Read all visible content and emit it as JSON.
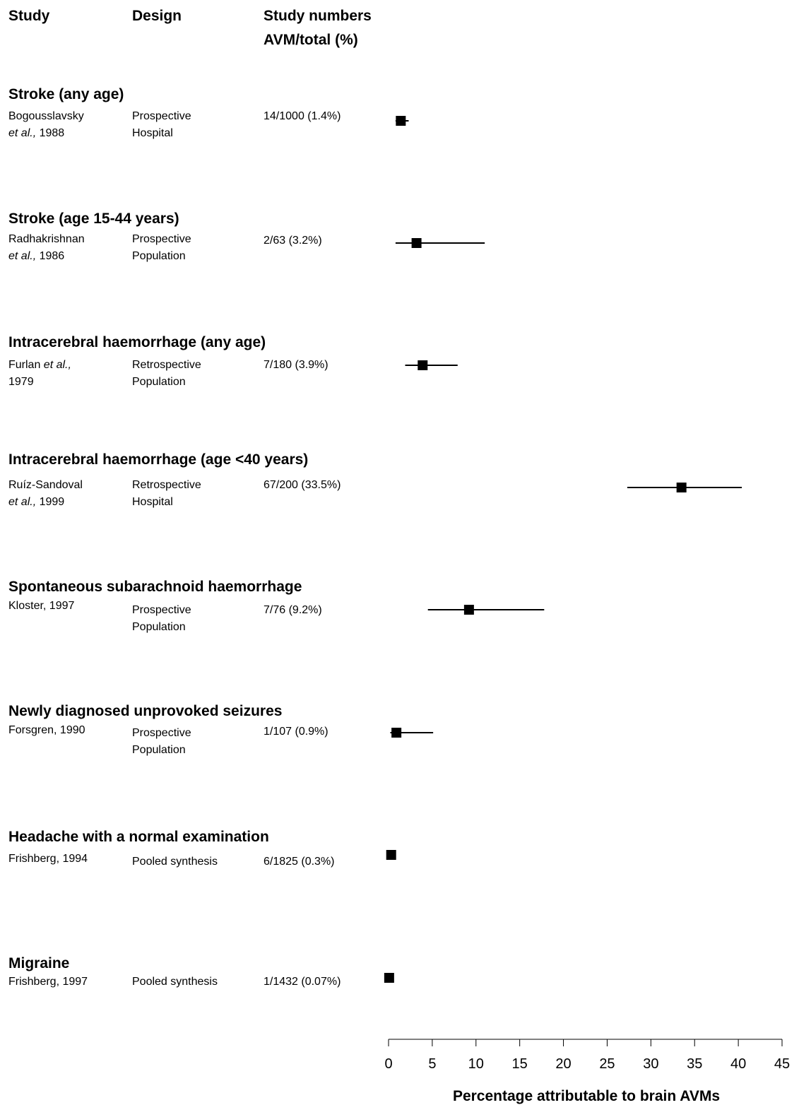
{
  "headers": {
    "study": "Study",
    "design": "Design",
    "numbers_line1": "Study numbers",
    "numbers_line2": "AVM/total (%)"
  },
  "groups": [
    {
      "title": "Stroke (any age)",
      "study_line1": "Bogousslavsky",
      "study_line2_italic": "et al.,",
      "study_line2_rest": " 1988",
      "design_line1": "Prospective",
      "design_line2": "Hospital",
      "numbers": "14/1000 (1.4%)"
    },
    {
      "title": "Stroke (age 15-44 years)",
      "study_line1": "Radhakrishnan",
      "study_line2_italic": "et al.,",
      "study_line2_rest": " 1986",
      "design_line1": "Prospective",
      "design_line2": "Population",
      "numbers": "2/63 (3.2%)"
    },
    {
      "title": "Intracerebral haemorrhage (any age)",
      "study_line1_plain": "Furlan ",
      "study_line1_italic": "et al.,",
      "study_line2": "1979",
      "design_line1": "Retrospective",
      "design_line2": "Population",
      "numbers": "7/180 (3.9%)"
    },
    {
      "title": "Intracerebral haemorrhage (age <40 years)",
      "study_line1": "Ruíz-Sandoval",
      "study_line2_italic": "et al.,",
      "study_line2_rest": " 1999",
      "design_line1": "Retrospective",
      "design_line2": "Hospital",
      "numbers": "67/200 (33.5%)"
    },
    {
      "title": "Spontaneous subarachnoid haemorrhage",
      "study_line1": "Kloster, 1997",
      "design_line1": "Prospective",
      "design_line2": "Population",
      "numbers": "7/76 (9.2%)"
    },
    {
      "title": "Newly diagnosed unprovoked seizures",
      "study_line1": "Forsgren, 1990",
      "design_line1": "Prospective",
      "design_line2": "Population",
      "numbers": "1/107 (0.9%)"
    },
    {
      "title": "Headache with a normal examination",
      "study_line1": "Frishberg, 1994",
      "design_line1": "Pooled synthesis",
      "numbers": "6/1825 (0.3%)"
    },
    {
      "title": "Migraine",
      "study_line1": "Frishberg, 1997",
      "design_line1": "Pooled synthesis",
      "numbers": "1/1432 (0.07%)"
    }
  ],
  "chart_data": {
    "type": "forest",
    "xlabel": "Percentage attributable to brain AVMs",
    "xlim": [
      0,
      45
    ],
    "xticks": [
      0,
      5,
      10,
      15,
      20,
      25,
      30,
      35,
      40,
      45
    ],
    "estimates": [
      {
        "label": "Bogousslavsky et al., 1988",
        "value": 1.4,
        "ci": [
          0.8,
          2.3
        ]
      },
      {
        "label": "Radhakrishnan et al., 1986",
        "value": 3.2,
        "ci": [
          0.8,
          11.0
        ]
      },
      {
        "label": "Furlan et al., 1979",
        "value": 3.9,
        "ci": [
          1.9,
          7.9
        ]
      },
      {
        "label": "Ruíz-Sandoval et al., 1999",
        "value": 33.5,
        "ci": [
          27.3,
          40.4
        ]
      },
      {
        "label": "Kloster, 1997",
        "value": 9.2,
        "ci": [
          4.5,
          17.8
        ]
      },
      {
        "label": "Forsgren, 1990",
        "value": 0.9,
        "ci": [
          0.2,
          5.1
        ]
      },
      {
        "label": "Frishberg, 1994",
        "value": 0.3
      },
      {
        "label": "Frishberg, 1997",
        "value": 0.07
      }
    ],
    "grid": false
  }
}
